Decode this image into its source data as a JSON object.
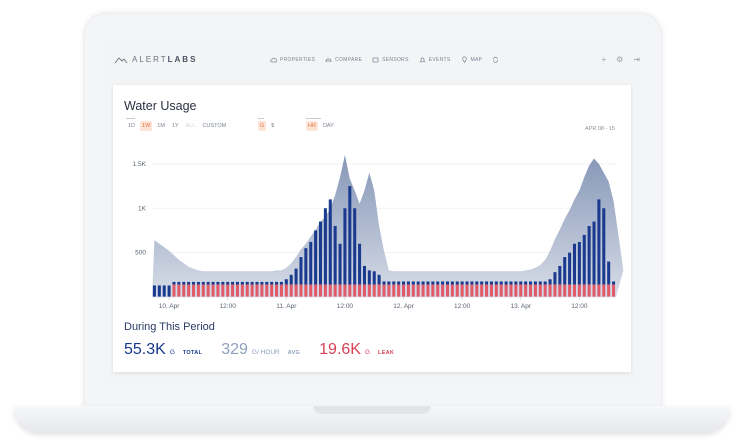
{
  "colors": {
    "total": "#1a3a8f",
    "leak": "#e05a6a",
    "area": "#a9b6cb",
    "avg": "#8fa1bd",
    "accent": "#e0733c"
  },
  "nav": {
    "logo_text_light": "ALERT",
    "logo_text_bold": "LABS",
    "items": [
      {
        "label": "PROPERTIES",
        "icon": "cloud-icon"
      },
      {
        "label": "COMPARE",
        "icon": "car-icon"
      },
      {
        "label": "SENSORS",
        "icon": "sensor-icon"
      },
      {
        "label": "EVENTS",
        "icon": "bell-icon"
      },
      {
        "label": "MAP",
        "icon": "map-pin-icon"
      },
      {
        "label": "",
        "icon": "refresh-icon"
      }
    ],
    "right_icons": [
      "plus-icon",
      "gear-icon",
      "logout-icon"
    ],
    "right_glyphs": [
      "+",
      "⚙",
      "⇥"
    ]
  },
  "card": {
    "title": "Water Usage",
    "range_options": [
      {
        "label": "1D",
        "state": "normal"
      },
      {
        "label": "1W",
        "state": "active"
      },
      {
        "label": "1M",
        "state": "normal"
      },
      {
        "label": "1Y",
        "state": "normal"
      },
      {
        "label": "ALL",
        "state": "disabled"
      },
      {
        "label": "CUSTOM",
        "state": "normal"
      }
    ],
    "unit_options": [
      {
        "label": "G",
        "state": "active"
      },
      {
        "label": "$",
        "state": "normal"
      }
    ],
    "interval_options": [
      {
        "label": "HR",
        "state": "active"
      },
      {
        "label": "DAY",
        "state": "normal"
      }
    ],
    "date_range": "APR 08 - 15"
  },
  "chart_data": {
    "type": "bar",
    "y_tick_labels": [
      "500",
      "1K",
      "1.5K"
    ],
    "y_ticks": [
      500,
      1000,
      1500
    ],
    "ylim": [
      0,
      1600
    ],
    "x_tick_labels": [
      "10. Apr",
      "12:00",
      "11. Apr",
      "12:00",
      "12. Apr",
      "12:00",
      "13. Apr",
      "12:00"
    ],
    "x_tick_positions": [
      3.5,
      15.5,
      27.5,
      39.5,
      51.5,
      63.5,
      75.5,
      87.5
    ],
    "grid": true,
    "series": [
      {
        "values": [
          130,
          130,
          130,
          130,
          170,
          170,
          170,
          170,
          170,
          170,
          170,
          170,
          170,
          170,
          170,
          170,
          170,
          170,
          170,
          170,
          170,
          170,
          170,
          170,
          170,
          170,
          170,
          200,
          250,
          320,
          450,
          550,
          620,
          750,
          850,
          1000,
          1100,
          800,
          600,
          1000,
          1250,
          1000,
          600,
          350,
          300,
          290,
          250,
          175,
          175,
          175,
          175,
          175,
          175,
          175,
          175,
          175,
          175,
          175,
          175,
          175,
          175,
          175,
          175,
          175,
          175,
          175,
          175,
          175,
          175,
          175,
          175,
          175,
          175,
          175,
          175,
          175,
          175,
          175,
          175,
          175,
          175,
          200,
          280,
          350,
          450,
          500,
          600,
          620,
          700,
          800,
          850,
          1100,
          1000,
          400,
          175
        ]
      },
      {
        "values": [
          0,
          0,
          0,
          0,
          140,
          140,
          140,
          140,
          140,
          140,
          140,
          140,
          140,
          140,
          140,
          140,
          140,
          140,
          140,
          140,
          140,
          140,
          140,
          140,
          140,
          140,
          140,
          140,
          140,
          140,
          140,
          140,
          140,
          140,
          140,
          140,
          140,
          140,
          140,
          140,
          140,
          140,
          140,
          140,
          140,
          140,
          140,
          140,
          140,
          140,
          140,
          140,
          140,
          140,
          140,
          140,
          140,
          140,
          140,
          140,
          140,
          140,
          140,
          140,
          140,
          140,
          140,
          140,
          140,
          140,
          140,
          140,
          140,
          140,
          140,
          140,
          140,
          140,
          140,
          140,
          140,
          140,
          140,
          140,
          140,
          140,
          140,
          140,
          140,
          140,
          140,
          140,
          140,
          140,
          140,
          140,
          140
        ]
      }
    ],
    "area_values": [
      640,
      600,
      560,
      520,
      470,
      420,
      380,
      340,
      320,
      300,
      290,
      290,
      290,
      290,
      290,
      290,
      290,
      290,
      290,
      290,
      290,
      290,
      290,
      290,
      290,
      300,
      300,
      330,
      380,
      450,
      540,
      600,
      680,
      760,
      850,
      900,
      1000,
      1150,
      1350,
      1600,
      1330,
      1200,
      1050,
      1200,
      1400,
      1200,
      800,
      520,
      300,
      290,
      290,
      290,
      290,
      290,
      290,
      290,
      290,
      290,
      290,
      290,
      290,
      290,
      290,
      290,
      290,
      290,
      290,
      290,
      290,
      290,
      290,
      290,
      290,
      290,
      290,
      290,
      300,
      310,
      330,
      360,
      420,
      520,
      650,
      760,
      880,
      980,
      1100,
      1200,
      1350,
      1480,
      1560,
      1500,
      1400,
      1300,
      1080,
      700,
      300
    ]
  },
  "summary": {
    "title": "During This Period",
    "stats": [
      {
        "value": "55.3K",
        "unit": "G",
        "tag": "TOTAL",
        "color": "#1a3a8f",
        "tag_color": "#1a3a8f"
      },
      {
        "value": "329",
        "unit": "G/ HOUR",
        "tag": "AVG",
        "color": "#8fa1bd",
        "tag_color": "#8fa1bd"
      },
      {
        "value": "19.6K",
        "unit": "G",
        "tag": "LEAK",
        "color": "#d94055",
        "tag_color": "#d94055"
      }
    ]
  }
}
